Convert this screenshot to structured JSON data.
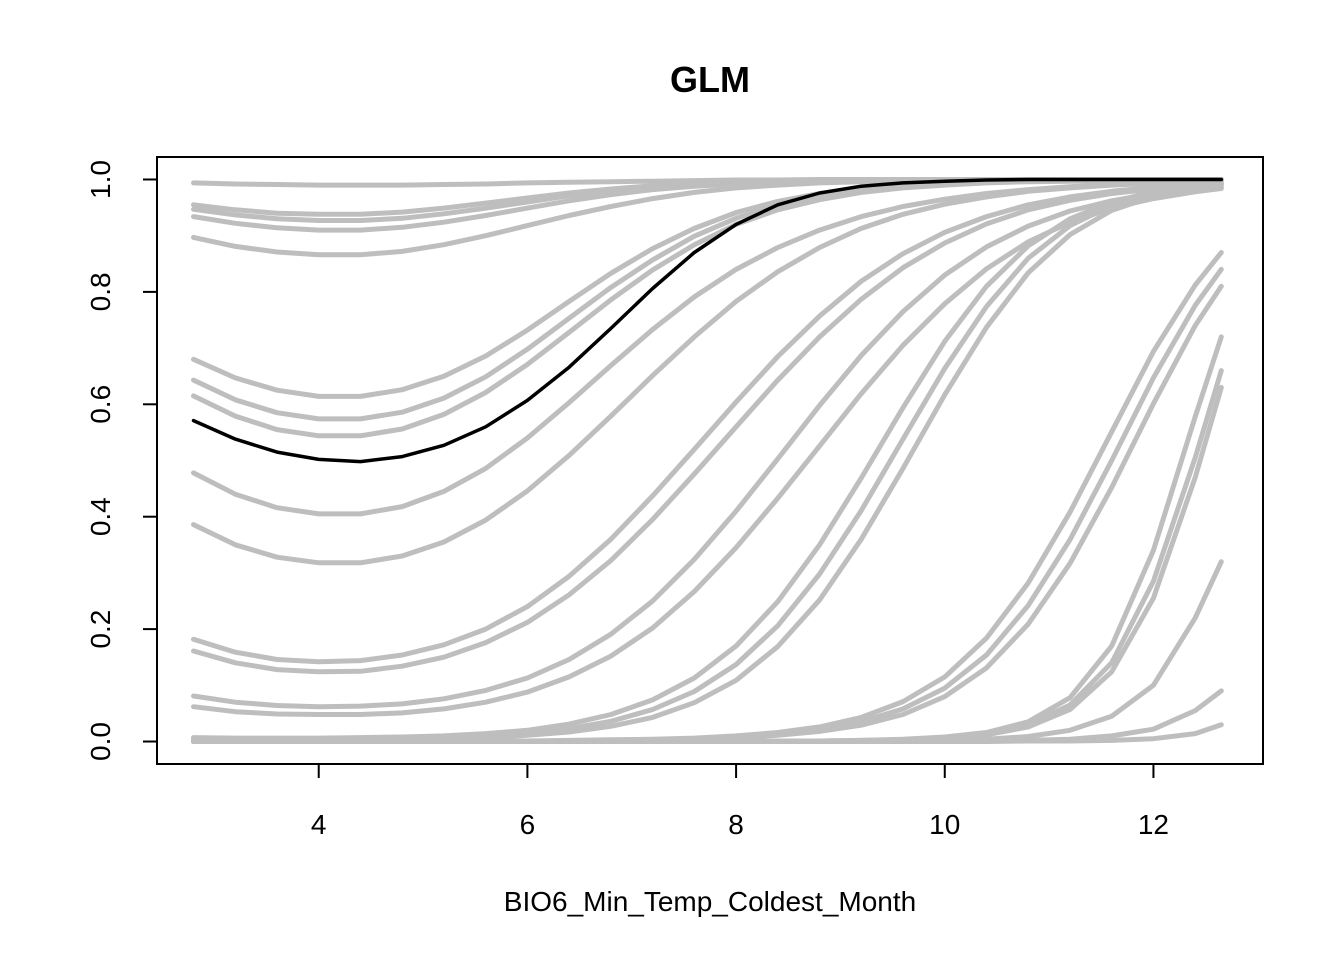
{
  "chart_data": {
    "type": "line",
    "title": "GLM",
    "xlabel": "BIO6_Min_Temp_Coldest_Month",
    "ylabel": "",
    "xlim": [
      2.45,
      13.05
    ],
    "ylim": [
      -0.04,
      1.04
    ],
    "x_ticks": [
      4,
      6,
      8,
      10,
      12
    ],
    "y_ticks": [
      0.0,
      0.2,
      0.4,
      0.6,
      0.8,
      1.0
    ],
    "x_tick_labels": [
      "4",
      "6",
      "8",
      "10",
      "12"
    ],
    "y_tick_labels": [
      "0.0",
      "0.2",
      "0.4",
      "0.6",
      "0.8",
      "1.0"
    ],
    "grid": false,
    "legend": "none",
    "colors": {
      "replicates": "#bebebe",
      "mean": "#000000",
      "frame": "#000000"
    },
    "x": [
      2.8,
      3.2,
      3.6,
      4.0,
      4.4,
      4.8,
      5.2,
      5.6,
      6.0,
      6.4,
      6.8,
      7.2,
      7.6,
      8.0,
      8.4,
      8.8,
      9.2,
      9.6,
      10.0,
      10.4,
      10.8,
      11.2,
      11.6,
      12.0,
      12.4,
      12.65
    ],
    "series": [
      {
        "role": "mean",
        "values": [
          0.571,
          0.538,
          0.515,
          0.502,
          0.498,
          0.507,
          0.527,
          0.56,
          0.607,
          0.666,
          0.735,
          0.806,
          0.87,
          0.92,
          0.955,
          0.976,
          0.988,
          0.994,
          0.997,
          0.999,
          1.0,
          1.0,
          1.0,
          1.0,
          1.0,
          1.0
        ]
      },
      {
        "role": "replicate",
        "values": [
          0.994,
          0.992,
          0.991,
          0.99,
          0.99,
          0.99,
          0.991,
          0.992,
          0.994,
          0.995,
          0.996,
          0.997,
          0.998,
          0.999,
          0.999,
          1.0,
          1.0,
          1.0,
          1.0,
          1.0,
          1.0,
          1.0,
          1.0,
          1.0,
          1.0,
          1.0
        ]
      },
      {
        "role": "replicate",
        "values": [
          0.955,
          0.946,
          0.94,
          0.938,
          0.938,
          0.942,
          0.949,
          0.958,
          0.967,
          0.976,
          0.983,
          0.989,
          0.993,
          0.996,
          0.997,
          0.998,
          0.999,
          1.0,
          1.0,
          1.0,
          1.0,
          1.0,
          1.0,
          1.0,
          1.0,
          1.0
        ]
      },
      {
        "role": "replicate",
        "values": [
          0.947,
          0.937,
          0.93,
          0.927,
          0.927,
          0.931,
          0.939,
          0.949,
          0.96,
          0.971,
          0.979,
          0.986,
          0.991,
          0.994,
          0.996,
          0.998,
          0.999,
          1.0,
          1.0,
          1.0,
          1.0,
          1.0,
          1.0,
          1.0,
          1.0,
          1.0
        ]
      },
      {
        "role": "replicate",
        "values": [
          0.934,
          0.922,
          0.914,
          0.91,
          0.91,
          0.915,
          0.924,
          0.936,
          0.949,
          0.962,
          0.973,
          0.982,
          0.988,
          0.992,
          0.995,
          0.997,
          0.998,
          0.999,
          1.0,
          1.0,
          1.0,
          1.0,
          1.0,
          1.0,
          1.0,
          1.0
        ]
      },
      {
        "role": "replicate",
        "values": [
          0.897,
          0.881,
          0.871,
          0.866,
          0.866,
          0.872,
          0.884,
          0.9,
          0.918,
          0.936,
          0.952,
          0.966,
          0.977,
          0.985,
          0.99,
          0.994,
          0.996,
          0.998,
          0.999,
          1.0,
          1.0,
          1.0,
          1.0,
          1.0,
          1.0,
          1.0
        ]
      },
      {
        "role": "replicate",
        "values": [
          0.68,
          0.647,
          0.625,
          0.614,
          0.614,
          0.626,
          0.65,
          0.686,
          0.732,
          0.783,
          0.833,
          0.877,
          0.913,
          0.941,
          0.961,
          0.975,
          0.984,
          0.99,
          0.994,
          0.996,
          0.998,
          0.999,
          0.999,
          1.0,
          1.0,
          1.0
        ]
      },
      {
        "role": "replicate",
        "values": [
          0.643,
          0.608,
          0.585,
          0.574,
          0.574,
          0.586,
          0.611,
          0.649,
          0.698,
          0.753,
          0.808,
          0.857,
          0.899,
          0.931,
          0.954,
          0.97,
          0.981,
          0.988,
          0.992,
          0.995,
          0.997,
          0.998,
          0.999,
          1.0,
          1.0,
          1.0
        ]
      },
      {
        "role": "replicate",
        "values": [
          0.615,
          0.579,
          0.555,
          0.544,
          0.544,
          0.556,
          0.582,
          0.621,
          0.671,
          0.728,
          0.786,
          0.839,
          0.884,
          0.92,
          0.946,
          0.964,
          0.977,
          0.985,
          0.99,
          0.994,
          0.996,
          0.997,
          0.998,
          0.999,
          1.0,
          1.0
        ]
      },
      {
        "role": "replicate",
        "values": [
          0.478,
          0.44,
          0.416,
          0.405,
          0.405,
          0.418,
          0.445,
          0.486,
          0.54,
          0.603,
          0.669,
          0.733,
          0.791,
          0.84,
          0.879,
          0.91,
          0.934,
          0.952,
          0.965,
          0.975,
          0.982,
          0.987,
          0.991,
          0.994,
          0.996,
          0.997
        ]
      },
      {
        "role": "replicate",
        "values": [
          0.386,
          0.35,
          0.328,
          0.318,
          0.318,
          0.33,
          0.355,
          0.394,
          0.446,
          0.509,
          0.579,
          0.651,
          0.72,
          0.783,
          0.836,
          0.879,
          0.913,
          0.938,
          0.956,
          0.969,
          0.979,
          0.985,
          0.99,
          0.993,
          0.995,
          0.996
        ]
      },
      {
        "role": "replicate",
        "values": [
          0.182,
          0.159,
          0.146,
          0.142,
          0.144,
          0.154,
          0.172,
          0.2,
          0.24,
          0.294,
          0.36,
          0.437,
          0.52,
          0.604,
          0.685,
          0.757,
          0.819,
          0.868,
          0.906,
          0.934,
          0.955,
          0.969,
          0.979,
          0.986,
          0.99,
          0.993
        ]
      },
      {
        "role": "replicate",
        "values": [
          0.161,
          0.14,
          0.128,
          0.124,
          0.125,
          0.134,
          0.15,
          0.176,
          0.212,
          0.261,
          0.322,
          0.395,
          0.476,
          0.56,
          0.643,
          0.72,
          0.787,
          0.843,
          0.887,
          0.921,
          0.946,
          0.963,
          0.975,
          0.983,
          0.989,
          0.991
        ]
      },
      {
        "role": "replicate",
        "values": [
          0.081,
          0.07,
          0.064,
          0.062,
          0.063,
          0.067,
          0.076,
          0.091,
          0.113,
          0.146,
          0.191,
          0.25,
          0.324,
          0.41,
          0.503,
          0.598,
          0.687,
          0.765,
          0.83,
          0.88,
          0.917,
          0.944,
          0.962,
          0.975,
          0.983,
          0.987
        ]
      },
      {
        "role": "replicate",
        "values": [
          0.062,
          0.053,
          0.049,
          0.048,
          0.048,
          0.051,
          0.058,
          0.07,
          0.088,
          0.115,
          0.152,
          0.202,
          0.267,
          0.345,
          0.433,
          0.526,
          0.619,
          0.705,
          0.779,
          0.841,
          0.889,
          0.924,
          0.949,
          0.966,
          0.978,
          0.984
        ]
      },
      {
        "role": "replicate",
        "values": [
          0.007,
          0.006,
          0.006,
          0.006,
          0.007,
          0.008,
          0.01,
          0.014,
          0.02,
          0.031,
          0.048,
          0.074,
          0.113,
          0.17,
          0.249,
          0.35,
          0.469,
          0.594,
          0.712,
          0.81,
          0.882,
          0.93,
          0.96,
          0.978,
          0.988,
          0.993
        ]
      },
      {
        "role": "replicate",
        "values": [
          0.004,
          0.004,
          0.004,
          0.004,
          0.004,
          0.005,
          0.007,
          0.01,
          0.015,
          0.023,
          0.036,
          0.057,
          0.089,
          0.137,
          0.206,
          0.298,
          0.411,
          0.538,
          0.664,
          0.774,
          0.86,
          0.918,
          0.954,
          0.975,
          0.987,
          0.992
        ]
      },
      {
        "role": "replicate",
        "values": [
          0.003,
          0.003,
          0.003,
          0.003,
          0.003,
          0.004,
          0.005,
          0.007,
          0.011,
          0.017,
          0.027,
          0.043,
          0.069,
          0.109,
          0.169,
          0.252,
          0.36,
          0.486,
          0.617,
          0.737,
          0.834,
          0.902,
          0.945,
          0.97,
          0.984,
          0.99
        ]
      },
      {
        "role": "replicate",
        "values": [
          0.001,
          0.001,
          0.001,
          0.001,
          0.001,
          0.001,
          0.001,
          0.001,
          0.001,
          0.002,
          0.003,
          0.004,
          0.006,
          0.01,
          0.016,
          0.026,
          0.043,
          0.071,
          0.115,
          0.184,
          0.282,
          0.408,
          0.551,
          0.694,
          0.812,
          0.87
        ]
      },
      {
        "role": "replicate",
        "values": [
          0.001,
          0.001,
          0.001,
          0.001,
          0.001,
          0.001,
          0.001,
          0.001,
          0.001,
          0.001,
          0.002,
          0.003,
          0.005,
          0.008,
          0.013,
          0.021,
          0.035,
          0.058,
          0.095,
          0.154,
          0.242,
          0.359,
          0.5,
          0.647,
          0.776,
          0.84
        ]
      },
      {
        "role": "replicate",
        "values": [
          0.0,
          0.0,
          0.0,
          0.0,
          0.0,
          0.0,
          0.0,
          0.001,
          0.001,
          0.001,
          0.002,
          0.003,
          0.004,
          0.007,
          0.011,
          0.018,
          0.029,
          0.048,
          0.08,
          0.131,
          0.209,
          0.317,
          0.452,
          0.601,
          0.74,
          0.81
        ]
      },
      {
        "role": "replicate",
        "values": [
          0.0,
          0.0,
          0.0,
          0.0,
          0.0,
          0.0,
          0.0,
          0.0,
          0.0,
          0.0,
          0.0,
          0.0,
          0.0,
          0.001,
          0.001,
          0.001,
          0.002,
          0.004,
          0.008,
          0.016,
          0.035,
          0.078,
          0.17,
          0.34,
          0.578,
          0.72
        ]
      },
      {
        "role": "replicate",
        "values": [
          0.0,
          0.0,
          0.0,
          0.0,
          0.0,
          0.0,
          0.0,
          0.0,
          0.0,
          0.0,
          0.0,
          0.0,
          0.0,
          0.0,
          0.001,
          0.001,
          0.002,
          0.003,
          0.007,
          0.014,
          0.03,
          0.065,
          0.14,
          0.285,
          0.505,
          0.66
        ]
      },
      {
        "role": "replicate",
        "values": [
          0.0,
          0.0,
          0.0,
          0.0,
          0.0,
          0.0,
          0.0,
          0.0,
          0.0,
          0.0,
          0.0,
          0.0,
          0.0,
          0.0,
          0.0,
          0.001,
          0.001,
          0.003,
          0.006,
          0.012,
          0.026,
          0.057,
          0.124,
          0.255,
          0.47,
          0.63
        ]
      },
      {
        "role": "replicate",
        "values": [
          0.0,
          0.0,
          0.0,
          0.0,
          0.0,
          0.0,
          0.0,
          0.0,
          0.0,
          0.0,
          0.0,
          0.0,
          0.0,
          0.0,
          0.0,
          0.0,
          0.0,
          0.001,
          0.002,
          0.004,
          0.009,
          0.02,
          0.045,
          0.1,
          0.22,
          0.32
        ]
      },
      {
        "role": "replicate",
        "values": [
          0.0,
          0.0,
          0.0,
          0.0,
          0.0,
          0.0,
          0.0,
          0.0,
          0.0,
          0.0,
          0.0,
          0.0,
          0.0,
          0.0,
          0.0,
          0.0,
          0.0,
          0.0,
          0.001,
          0.001,
          0.002,
          0.004,
          0.01,
          0.022,
          0.055,
          0.09
        ]
      },
      {
        "role": "replicate",
        "values": [
          0.0,
          0.0,
          0.0,
          0.0,
          0.0,
          0.0,
          0.0,
          0.0,
          0.0,
          0.0,
          0.0,
          0.0,
          0.0,
          0.0,
          0.0,
          0.0,
          0.0,
          0.0,
          0.0,
          0.0,
          0.001,
          0.001,
          0.002,
          0.005,
          0.014,
          0.03
        ]
      }
    ]
  }
}
